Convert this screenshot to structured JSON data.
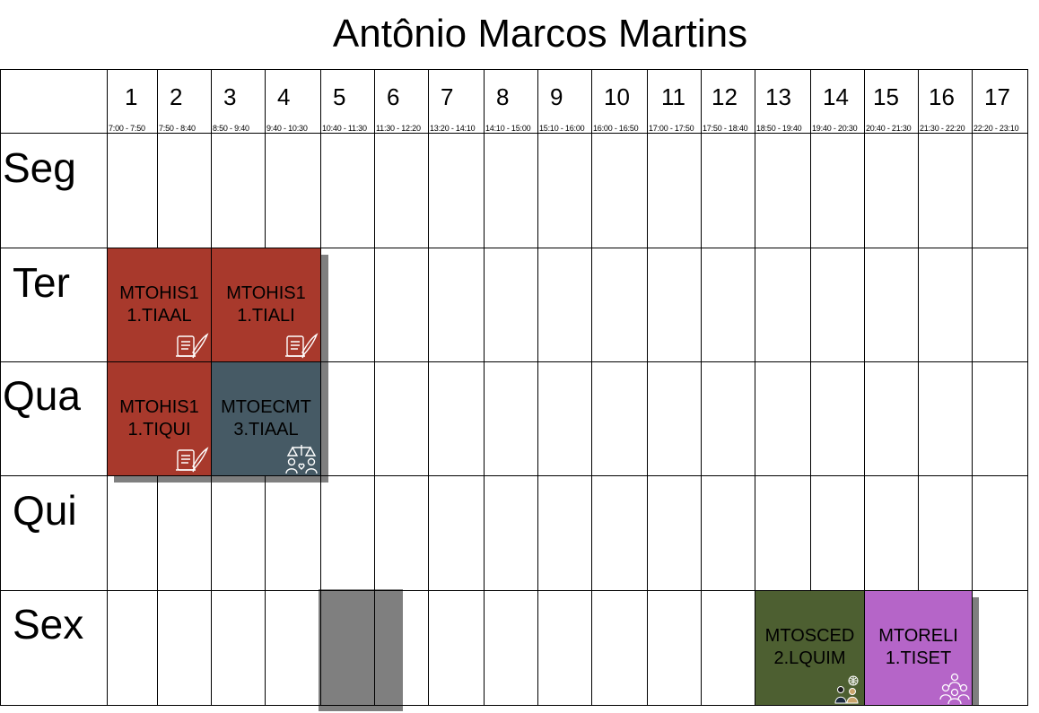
{
  "title": "Antônio Marcos Martins",
  "colors": {
    "history": "#a8392c",
    "ethics": "#465a65",
    "sociology": "#4d5f31",
    "religion": "#b565c8",
    "shadow": "#7f7f7f",
    "grid": "#000000"
  },
  "hours": [
    {
      "num": "1",
      "time": "7:00 - 7:50"
    },
    {
      "num": "2",
      "time": "7:50 - 8:40"
    },
    {
      "num": "3",
      "time": "8:50 - 9:40"
    },
    {
      "num": "4",
      "time": "9:40 - 10:30"
    },
    {
      "num": "5",
      "time": "10:40 - 11:30"
    },
    {
      "num": "6",
      "time": "11:30 - 12:20"
    },
    {
      "num": "7",
      "time": "13:20 - 14:10"
    },
    {
      "num": "8",
      "time": "14:10 - 15:00"
    },
    {
      "num": "9",
      "time": "15:10 - 16:00"
    },
    {
      "num": "10",
      "time": "16:00 - 16:50"
    },
    {
      "num": "11",
      "time": "17:00 - 17:50"
    },
    {
      "num": "12",
      "time": "17:50 - 18:40"
    },
    {
      "num": "13",
      "time": "18:50 - 19:40"
    },
    {
      "num": "14",
      "time": "19:40 - 20:30"
    },
    {
      "num": "15",
      "time": "20:40 - 21:30"
    },
    {
      "num": "16",
      "time": "21:30 - 22:20"
    },
    {
      "num": "17",
      "time": "22:20 - 23:10"
    }
  ],
  "days": [
    "Seg",
    "Ter",
    "Qua",
    "Qui",
    "Sex"
  ],
  "classes": [
    {
      "day": 1,
      "start": 0,
      "span": 2,
      "code": "MTOHIS1",
      "group": "1.TIAAL",
      "color": "#a8392c",
      "icon": "scroll-quill-icon"
    },
    {
      "day": 1,
      "start": 2,
      "span": 2,
      "code": "MTOHIS1",
      "group": "1.TIALI",
      "color": "#a8392c",
      "icon": "scroll-quill-icon"
    },
    {
      "day": 2,
      "start": 0,
      "span": 2,
      "code": "MTOHIS1",
      "group": "1.TIQUI",
      "color": "#a8392c",
      "icon": "scroll-quill-icon"
    },
    {
      "day": 2,
      "start": 2,
      "span": 2,
      "code": "MTOECMT",
      "group": "3.TIAAL",
      "color": "#465a65",
      "icon": "scales-people-icon"
    },
    {
      "day": 4,
      "start": 12,
      "span": 2,
      "code": "MTOSCED",
      "group": "2.LQUIM",
      "color": "#4d5f31",
      "icon": "people-globe-icon"
    },
    {
      "day": 4,
      "start": 14,
      "span": 2,
      "code": "MTORELI",
      "group": "1.TISET",
      "color": "#b565c8",
      "icon": "group-people-icon"
    }
  ]
}
